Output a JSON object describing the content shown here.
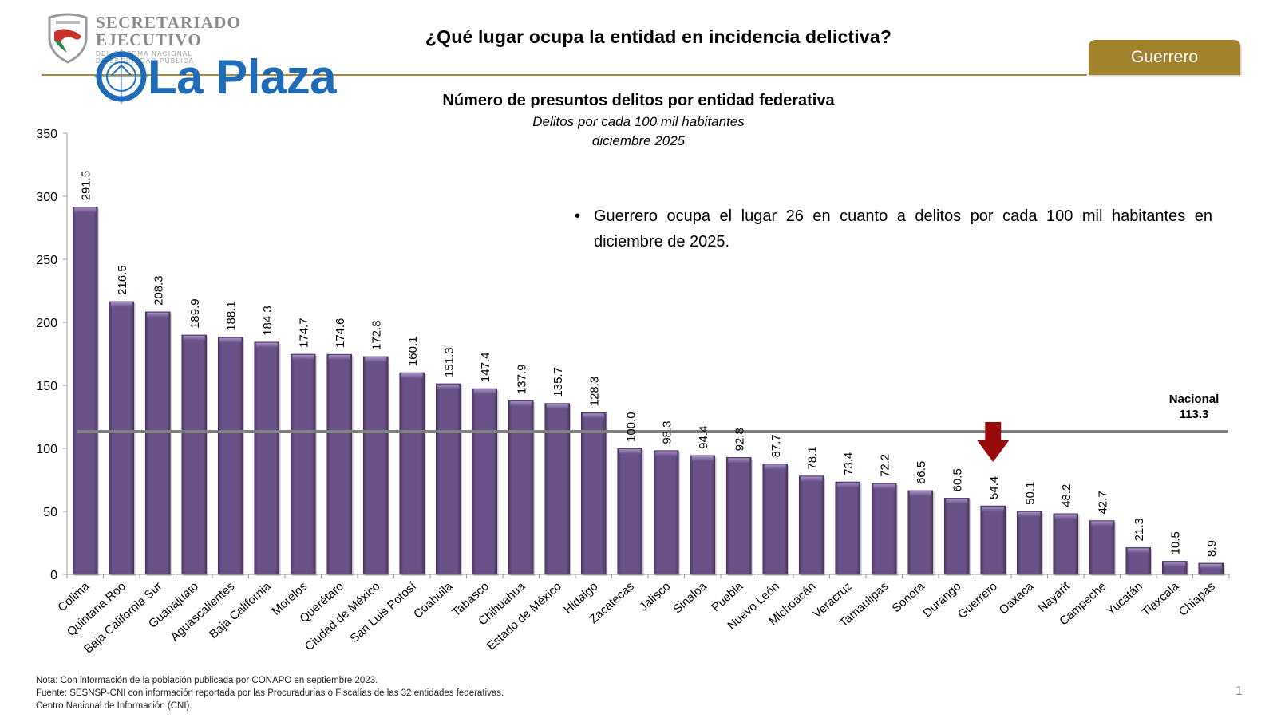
{
  "header": {
    "page_title": "¿Qué lugar ocupa la entidad en incidencia delictiva?",
    "entity_badge": "Guerrero",
    "org_name_line1": "SECRETARIADO",
    "org_name_line2": "EJECUTIVO",
    "org_name_line3": "DEL SISTEMA NACIONAL",
    "org_name_line4": "DE SEGURIDAD PÚBLICA",
    "watermark": "La Plaza",
    "brand_color": "#a2822d",
    "watermark_color": "#1f6bb5"
  },
  "bullet_note": "Guerrero ocupa el lugar 26 en cuanto a delitos por cada 100 mil habitantes en diciembre de 2025.",
  "footnotes": [
    "Nota: Con información de la población publicada por CONAPO en septiembre 2023.",
    "Fuente: SESNSP-CNI con información reportada por las Procuradurías o Fiscalías de las 32 entidades federativas.",
    "Centro Nacional de Información (CNI)."
  ],
  "page_number": "1",
  "chart_data": {
    "type": "bar",
    "title": "Número de presuntos delitos por entidad federativa",
    "subtitle": "Delitos por cada 100 mil habitantes",
    "period": "diciembre 2025",
    "xlabel": "",
    "ylabel": "",
    "ylim": [
      0,
      350
    ],
    "yticks": [
      0,
      50,
      100,
      150,
      200,
      250,
      300,
      350
    ],
    "grid": false,
    "bar_color": "#644c82",
    "categories": [
      "Colima",
      "Quintana Roo",
      "Baja California Sur",
      "Guanajuato",
      "Aguascalientes",
      "Baja California",
      "Morelos",
      "Querétaro",
      "Ciudad de México",
      "San Luis Potosí",
      "Coahuila",
      "Tabasco",
      "Chihuahua",
      "Estado de México",
      "Hidalgo",
      "Zacatecas",
      "Jalisco",
      "Sinaloa",
      "Puebla",
      "Nuevo León",
      "Michoacán",
      "Veracruz",
      "Tamaulipas",
      "Sonora",
      "Durango",
      "Guerrero",
      "Oaxaca",
      "Nayarit",
      "Campeche",
      "Yucatán",
      "Tlaxcala",
      "Chiapas"
    ],
    "values": [
      291.5,
      216.5,
      208.3,
      189.9,
      188.1,
      184.3,
      174.7,
      174.6,
      172.8,
      160.1,
      151.3,
      147.4,
      137.9,
      135.7,
      128.3,
      100.0,
      98.3,
      94.4,
      92.8,
      87.7,
      78.1,
      73.4,
      72.2,
      66.5,
      60.5,
      54.4,
      50.1,
      48.2,
      42.7,
      21.3,
      10.5,
      8.9
    ],
    "value_labels": [
      "291.5",
      "216.5",
      "208.3",
      "189.9",
      "188.1",
      "184.3",
      "174.7",
      "174.6",
      "172.8",
      "160.1",
      "151.3",
      "147.4",
      "137.9",
      "135.7",
      "128.3",
      "100.0",
      "98.3",
      "94.4",
      "92.8",
      "87.7",
      "78.1",
      "73.4",
      "72.2",
      "66.5",
      "60.5",
      "54.4",
      "50.1",
      "48.2",
      "42.7",
      "21.3",
      "10.5",
      "8.9"
    ],
    "reference_line": {
      "label": "Nacional",
      "value": 113.3,
      "value_label": "113.3",
      "color": "#808080"
    },
    "highlight": {
      "category": "Guerrero",
      "marker": "down-arrow",
      "color": "#9b0a0a"
    }
  }
}
